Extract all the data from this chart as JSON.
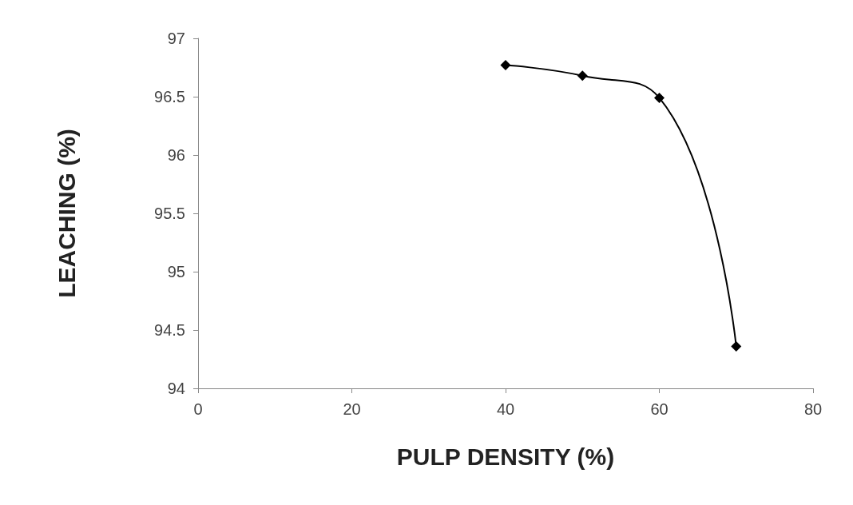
{
  "chart_data": {
    "type": "line",
    "xlabel": "PULP DENSITY (%)",
    "ylabel": "LEACHING (%)",
    "x": [
      40,
      50,
      60,
      70
    ],
    "series": [
      {
        "color": "#000000",
        "values": [
          96.77,
          96.68,
          96.49,
          94.36
        ]
      }
    ],
    "xlim": [
      0,
      80
    ],
    "xticks": [
      0,
      20,
      40,
      60,
      80
    ],
    "ylim": [
      94,
      97
    ],
    "yticks": [
      94,
      94.5,
      95,
      95.5,
      96,
      96.5,
      97
    ],
    "grid": false,
    "marker": "diamond",
    "line_style": "solid"
  }
}
